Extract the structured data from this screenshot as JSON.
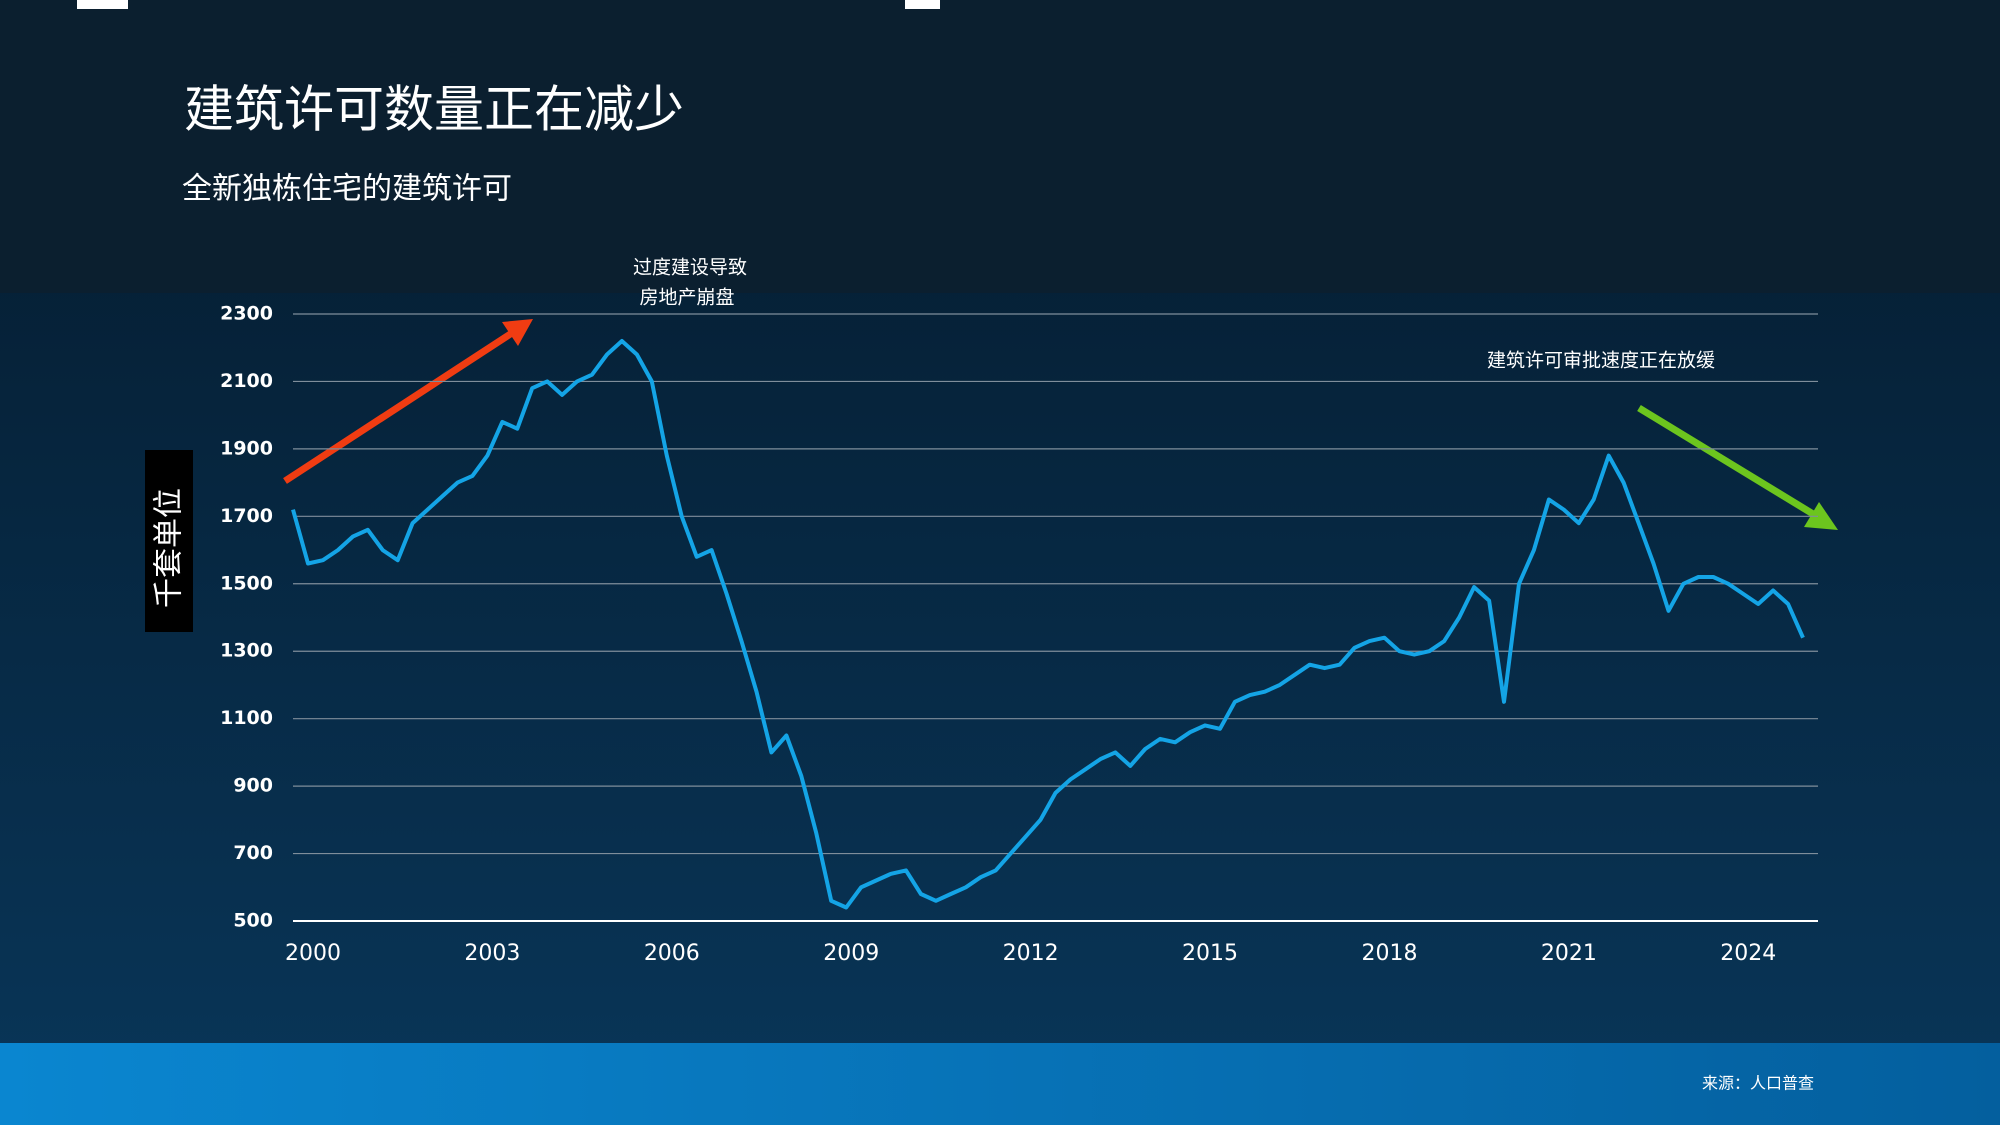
{
  "chart_data": {
    "type": "line",
    "title": "建筑许可数量正在减少",
    "subtitle": "全新独栋住宅的建筑许可",
    "y_label": "千套单位",
    "annotations": [
      "过度建设导致",
      "房地产崩盘",
      "建筑许可审批速度正在放缓"
    ],
    "source": "来源：人口普查",
    "x": [
      2000,
      2000.25,
      2000.5,
      2000.75,
      2001,
      2001.25,
      2001.5,
      2001.75,
      2002,
      2002.25,
      2002.5,
      2002.75,
      2003,
      2003.25,
      2003.5,
      2003.75,
      2004,
      2004.25,
      2004.5,
      2004.75,
      2005,
      2005.25,
      2005.5,
      2005.75,
      2006,
      2006.25,
      2006.5,
      2006.75,
      2007,
      2007.25,
      2007.5,
      2007.75,
      2008,
      2008.25,
      2008.5,
      2008.75,
      2009,
      2009.25,
      2009.5,
      2009.75,
      2010,
      2010.25,
      2010.5,
      2010.75,
      2011,
      2011.25,
      2011.5,
      2011.75,
      2012,
      2012.25,
      2012.5,
      2012.75,
      2013,
      2013.25,
      2013.5,
      2013.75,
      2014,
      2014.25,
      2014.5,
      2014.75,
      2015,
      2015.25,
      2015.5,
      2015.75,
      2016,
      2016.25,
      2016.5,
      2016.75,
      2017,
      2017.25,
      2017.5,
      2017.75,
      2018,
      2018.25,
      2018.5,
      2018.75,
      2019,
      2019.25,
      2019.5,
      2019.75,
      2020,
      2020.25,
      2020.5,
      2020.75,
      2021,
      2021.25,
      2021.5,
      2021.75,
      2022,
      2022.25,
      2022.5,
      2022.75,
      2023,
      2023.25,
      2023.5,
      2023.75,
      2024,
      2024.25,
      2024.5,
      2024.75,
      2025,
      2025.25
    ],
    "series": [
      {
        "name": "建筑许可",
        "color": "#14a4e6",
        "values": [
          1720,
          1560,
          1570,
          1600,
          1640,
          1660,
          1600,
          1570,
          1680,
          1720,
          1760,
          1800,
          1820,
          1880,
          1980,
          1960,
          2080,
          2100,
          2060,
          2100,
          2120,
          2180,
          2220,
          2180,
          2100,
          1880,
          1700,
          1580,
          1600,
          1470,
          1330,
          1180,
          1000,
          1050,
          930,
          760,
          560,
          540,
          600,
          620,
          640,
          650,
          580,
          560,
          580,
          600,
          630,
          650,
          700,
          750,
          800,
          880,
          920,
          950,
          980,
          1000,
          960,
          1010,
          1040,
          1030,
          1060,
          1080,
          1070,
          1150,
          1170,
          1180,
          1200,
          1230,
          1260,
          1250,
          1260,
          1310,
          1330,
          1340,
          1300,
          1290,
          1300,
          1330,
          1400,
          1490,
          1450,
          1150,
          1500,
          1600,
          1750,
          1720,
          1680,
          1750,
          1880,
          1800,
          1680,
          1560,
          1420,
          1500,
          1520,
          1520,
          1500,
          1470,
          1440,
          1480,
          1440,
          1340
        ]
      }
    ],
    "xlim": [
      2000,
      2025.5
    ],
    "xticks": [
      2000,
      2003,
      2006,
      2009,
      2012,
      2015,
      2018,
      2021,
      2024
    ],
    "ylim": [
      500,
      2300
    ],
    "yticks": [
      500,
      700,
      900,
      1100,
      1300,
      1500,
      1700,
      1900,
      2100,
      2300
    ],
    "grid": true
  }
}
